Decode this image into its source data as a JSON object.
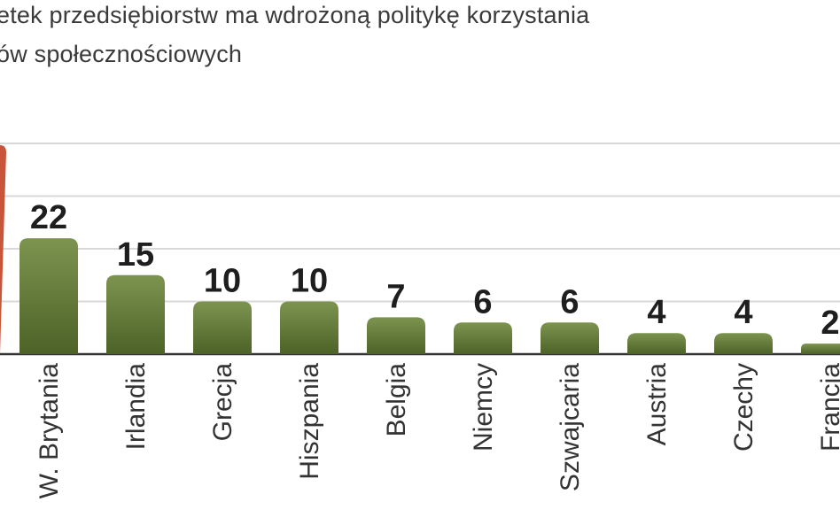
{
  "chart_data": {
    "type": "bar",
    "title_lines": [
      "etek przedsiębiorstw ma wdrożoną politykę korzystania",
      "ów społecznościowych"
    ],
    "categories": [
      "W. Brytania",
      "Irlandia",
      "Grecja",
      "Hiszpania",
      "Belgia",
      "Niemcy",
      "Szwajcaria",
      "Austria",
      "Czechy",
      "Francja"
    ],
    "values": [
      22,
      15,
      10,
      10,
      7,
      6,
      6,
      4,
      4,
      2
    ],
    "partial_cut_bar": {
      "color": "#c8553a",
      "note": "bar cut off at left edge, value not visible"
    },
    "ylim": [
      0,
      40
    ],
    "grid": true,
    "colors": {
      "bar_top": "#7d9450",
      "bar_bottom": "#4c6227",
      "grid": "#d9d9d9",
      "baseline": "#333333",
      "highlight_bar": "#c8553a"
    }
  }
}
